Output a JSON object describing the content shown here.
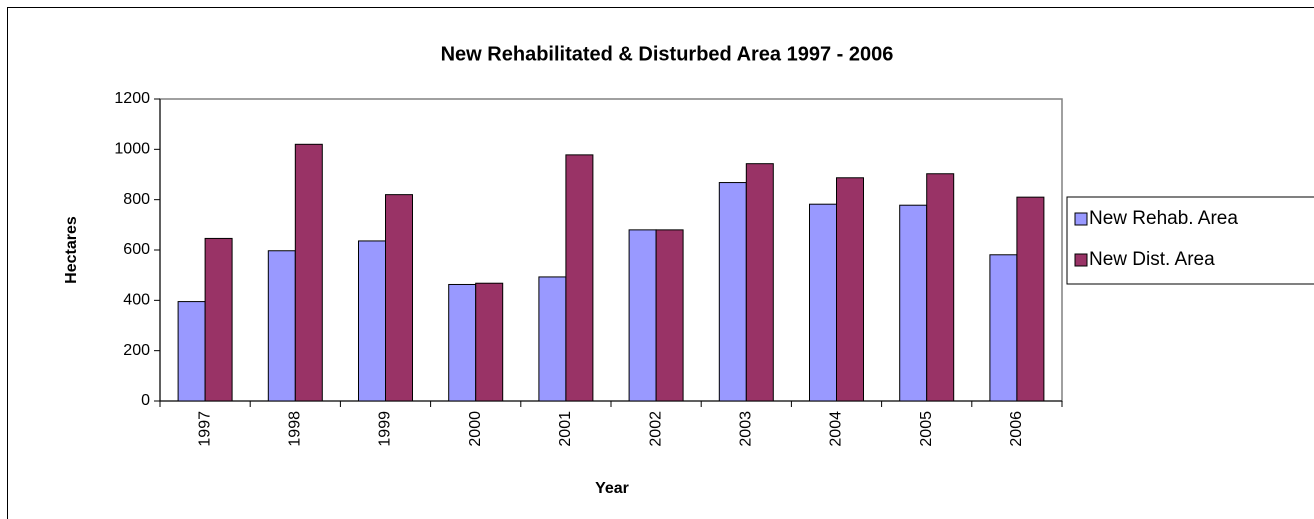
{
  "chart_data": {
    "type": "bar",
    "title": "New Rehabilitated & Disturbed Area 1997 - 2006",
    "x_label": "Year",
    "y_label": "Hectares",
    "categories": [
      "1997",
      "1998",
      "1999",
      "2000",
      "2001",
      "2002",
      "2003",
      "2004",
      "2005",
      "2006"
    ],
    "series": [
      {
        "name": "New Rehab. Area",
        "color": "#9999ff",
        "values": [
          395,
          597,
          636,
          463,
          493,
          680,
          868,
          782,
          778,
          581
        ]
      },
      {
        "name": "New Dist. Area",
        "color": "#993366",
        "values": [
          646,
          1020,
          820,
          468,
          978,
          680,
          943,
          887,
          903,
          810
        ]
      }
    ],
    "ylim": [
      0,
      1200
    ],
    "yticks": [
      0,
      200,
      400,
      600,
      800,
      1000,
      1200
    ],
    "grid": false,
    "legend": "right"
  }
}
